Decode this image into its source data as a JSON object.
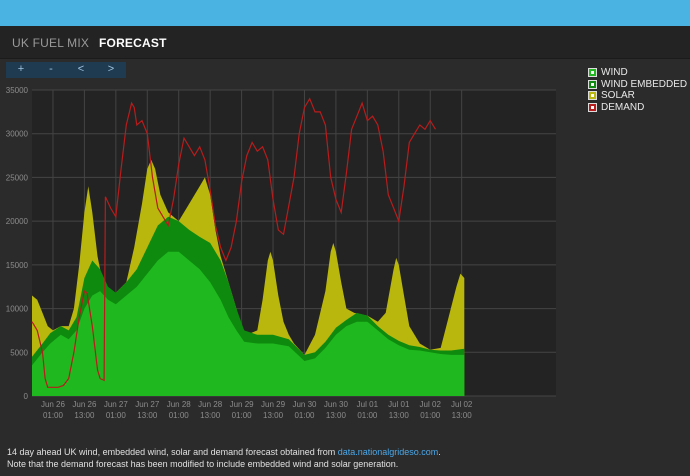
{
  "nav": {
    "tabs": [
      {
        "label": "UK FUEL MIX"
      },
      {
        "label": "FORECAST"
      }
    ]
  },
  "zoom": {
    "buttons": [
      "+",
      "-",
      "<",
      ">"
    ]
  },
  "legend": [
    {
      "label": "WIND",
      "color": "#1fb81f"
    },
    {
      "label": "WIND EMBEDDED",
      "color": "#0e8a0e"
    },
    {
      "label": "SOLAR",
      "color": "#b9b70e"
    },
    {
      "label": "DEMAND",
      "color": "#b81c1c"
    }
  ],
  "footer": {
    "line1_prefix": "14 day ahead UK wind, embedded wind, solar and demand forecast obtained from ",
    "link": "data.nationalgrideso.com",
    "line1_suffix": ".",
    "line2": "Note that the demand forecast has been modified to include embedded wind and solar generation."
  },
  "chart_data": {
    "type": "area",
    "x_unit": "hours since Jun 26 01:00",
    "ylim": [
      0,
      35000
    ],
    "yticks": [
      0,
      5000,
      10000,
      15000,
      20000,
      25000,
      30000,
      35000
    ],
    "xlim": [
      -8,
      192
    ],
    "xticks": [
      {
        "x": 0,
        "line1": "Jun 26",
        "line2": "01:00"
      },
      {
        "x": 12,
        "line1": "Jun 26",
        "line2": "13:00"
      },
      {
        "x": 24,
        "line1": "Jun 27",
        "line2": "01:00"
      },
      {
        "x": 36,
        "line1": "Jun 27",
        "line2": "13:00"
      },
      {
        "x": 48,
        "line1": "Jun 28",
        "line2": "01:00"
      },
      {
        "x": 60,
        "line1": "Jun 28",
        "line2": "13:00"
      },
      {
        "x": 72,
        "line1": "Jun 29",
        "line2": "01:00"
      },
      {
        "x": 84,
        "line1": "Jun 29",
        "line2": "13:00"
      },
      {
        "x": 96,
        "line1": "Jun 30",
        "line2": "01:00"
      },
      {
        "x": 108,
        "line1": "Jun 30",
        "line2": "13:00"
      },
      {
        "x": 120,
        "line1": "Jul 01",
        "line2": "01:00"
      },
      {
        "x": 132,
        "line1": "Jul 01",
        "line2": "13:00"
      },
      {
        "x": 144,
        "line1": "Jul 02",
        "line2": "01:00"
      },
      {
        "x": 156,
        "line1": "Jul 02",
        "line2": "13:00"
      }
    ],
    "grid": true,
    "legend_position": "right",
    "stacked": true,
    "series": [
      {
        "name": "WIND",
        "color": "#1fb81f",
        "points": [
          [
            -8,
            3500
          ],
          [
            -4,
            5000
          ],
          [
            -1,
            6000
          ],
          [
            3,
            7000
          ],
          [
            6,
            6500
          ],
          [
            9,
            7500
          ],
          [
            12,
            10000
          ],
          [
            15,
            11500
          ],
          [
            18,
            12000
          ],
          [
            21,
            11000
          ],
          [
            24,
            10500
          ],
          [
            28,
            11500
          ],
          [
            32,
            12500
          ],
          [
            36,
            14000
          ],
          [
            40,
            15500
          ],
          [
            44,
            16500
          ],
          [
            48,
            16500
          ],
          [
            52,
            15500
          ],
          [
            56,
            14500
          ],
          [
            60,
            13000
          ],
          [
            64,
            11000
          ],
          [
            67,
            9000
          ],
          [
            70,
            7500
          ],
          [
            73,
            6200
          ],
          [
            78,
            6000
          ],
          [
            84,
            6000
          ],
          [
            90,
            5700
          ],
          [
            96,
            4000
          ],
          [
            100,
            4300
          ],
          [
            104,
            5500
          ],
          [
            108,
            7000
          ],
          [
            112,
            8000
          ],
          [
            116,
            8500
          ],
          [
            120,
            8500
          ],
          [
            124,
            7500
          ],
          [
            128,
            6500
          ],
          [
            132,
            5800
          ],
          [
            136,
            5300
          ],
          [
            140,
            5200
          ],
          [
            144,
            5000
          ],
          [
            148,
            4800
          ],
          [
            152,
            4700
          ],
          [
            157,
            4700
          ]
        ]
      },
      {
        "name": "WIND EMBEDDED",
        "color": "#0e8a0e",
        "points": [
          [
            -8,
            4500
          ],
          [
            -4,
            6000
          ],
          [
            -1,
            7200
          ],
          [
            3,
            8000
          ],
          [
            6,
            7500
          ],
          [
            9,
            9000
          ],
          [
            12,
            13500
          ],
          [
            15,
            15500
          ],
          [
            18,
            14500
          ],
          [
            21,
            12500
          ],
          [
            24,
            11800
          ],
          [
            28,
            13000
          ],
          [
            32,
            14500
          ],
          [
            36,
            17000
          ],
          [
            40,
            19500
          ],
          [
            44,
            20500
          ],
          [
            48,
            20000
          ],
          [
            52,
            19000
          ],
          [
            56,
            18200
          ],
          [
            60,
            17500
          ],
          [
            64,
            15500
          ],
          [
            67,
            13000
          ],
          [
            70,
            10000
          ],
          [
            73,
            7500
          ],
          [
            78,
            7000
          ],
          [
            84,
            7000
          ],
          [
            90,
            6500
          ],
          [
            96,
            4700
          ],
          [
            100,
            5000
          ],
          [
            104,
            6200
          ],
          [
            108,
            7800
          ],
          [
            112,
            8700
          ],
          [
            116,
            9500
          ],
          [
            120,
            9200
          ],
          [
            124,
            8000
          ],
          [
            128,
            7000
          ],
          [
            132,
            6300
          ],
          [
            136,
            5800
          ],
          [
            140,
            5600
          ],
          [
            144,
            5300
          ],
          [
            148,
            5200
          ],
          [
            152,
            5200
          ],
          [
            157,
            5400
          ]
        ]
      },
      {
        "name": "SOLAR",
        "color": "#b9b70e",
        "points": [
          [
            -8,
            11500
          ],
          [
            -6,
            11000
          ],
          [
            -4,
            9500
          ],
          [
            -2,
            8000
          ],
          [
            0,
            7500
          ],
          [
            3,
            8000
          ],
          [
            6,
            8000
          ],
          [
            8,
            10000
          ],
          [
            10,
            15000
          ],
          [
            12,
            21000
          ],
          [
            13.5,
            24000
          ],
          [
            15,
            21000
          ],
          [
            17,
            16000
          ],
          [
            19,
            13000
          ],
          [
            21,
            12000
          ],
          [
            24,
            11800
          ],
          [
            28,
            13000
          ],
          [
            31,
            17000
          ],
          [
            34,
            22000
          ],
          [
            36,
            26000
          ],
          [
            37.5,
            27000
          ],
          [
            39,
            26000
          ],
          [
            41,
            23000
          ],
          [
            44,
            21000
          ],
          [
            48,
            20000
          ],
          [
            50,
            21000
          ],
          [
            52,
            22000
          ],
          [
            56,
            24000
          ],
          [
            58,
            25000
          ],
          [
            60,
            23000
          ],
          [
            62,
            19000
          ],
          [
            64,
            16000
          ],
          [
            67,
            13000
          ],
          [
            70,
            10000
          ],
          [
            72,
            8000
          ],
          [
            74,
            7000
          ],
          [
            78,
            7500
          ],
          [
            80,
            11000
          ],
          [
            82,
            15500
          ],
          [
            83,
            16500
          ],
          [
            84,
            15500
          ],
          [
            86,
            11500
          ],
          [
            88,
            8500
          ],
          [
            90,
            7000
          ],
          [
            92,
            6000
          ],
          [
            96,
            4700
          ],
          [
            100,
            7000
          ],
          [
            104,
            12000
          ],
          [
            106,
            16500
          ],
          [
            107,
            17500
          ],
          [
            108,
            16500
          ],
          [
            110,
            13000
          ],
          [
            112,
            10000
          ],
          [
            115,
            9500
          ],
          [
            120,
            9200
          ],
          [
            124,
            8500
          ],
          [
            127,
            9500
          ],
          [
            130,
            14500
          ],
          [
            131,
            15800
          ],
          [
            132,
            15000
          ],
          [
            134,
            11500
          ],
          [
            136,
            8000
          ],
          [
            140,
            6000
          ],
          [
            144,
            5300
          ],
          [
            148,
            5500
          ],
          [
            151,
            9000
          ],
          [
            154,
            12500
          ],
          [
            155.5,
            14000
          ],
          [
            157,
            13500
          ]
        ]
      }
    ],
    "demand": {
      "name": "DEMAND",
      "color": "#b81c1c",
      "points": [
        [
          -8,
          8500
        ],
        [
          -6,
          7500
        ],
        [
          -4,
          5000
        ],
        [
          -3,
          2000
        ],
        [
          -2,
          1000
        ],
        [
          2,
          1000
        ],
        [
          4,
          1200
        ],
        [
          6,
          2000
        ],
        [
          8,
          5000
        ],
        [
          10,
          9000
        ],
        [
          12,
          12000
        ],
        [
          13,
          11800
        ],
        [
          15,
          8000
        ],
        [
          17,
          3000
        ],
        [
          18,
          2000
        ],
        [
          19.5,
          1800
        ],
        [
          20,
          22800
        ],
        [
          22,
          21500
        ],
        [
          24,
          20500
        ],
        [
          26,
          26000
        ],
        [
          28,
          31000
        ],
        [
          30,
          33500
        ],
        [
          31,
          33000
        ],
        [
          32,
          31000
        ],
        [
          34,
          31500
        ],
        [
          36,
          30000
        ],
        [
          38,
          25000
        ],
        [
          40,
          21500
        ],
        [
          44,
          19500
        ],
        [
          46,
          22500
        ],
        [
          48,
          26500
        ],
        [
          50,
          29500
        ],
        [
          52,
          28500
        ],
        [
          54,
          27500
        ],
        [
          56,
          28500
        ],
        [
          58,
          27000
        ],
        [
          60,
          23500
        ],
        [
          62,
          19500
        ],
        [
          64,
          17000
        ],
        [
          66,
          15500
        ],
        [
          68,
          17000
        ],
        [
          70,
          20000
        ],
        [
          72,
          24500
        ],
        [
          74,
          27500
        ],
        [
          76,
          29000
        ],
        [
          78,
          28000
        ],
        [
          80,
          28500
        ],
        [
          82,
          27000
        ],
        [
          84,
          22500
        ],
        [
          86,
          19000
        ],
        [
          88,
          18500
        ],
        [
          92,
          25000
        ],
        [
          94,
          30000
        ],
        [
          96,
          33000
        ],
        [
          98,
          34000
        ],
        [
          100,
          32500
        ],
        [
          102,
          32500
        ],
        [
          104,
          31000
        ],
        [
          106,
          25000
        ],
        [
          108,
          22500
        ],
        [
          110,
          21000
        ],
        [
          112,
          25500
        ],
        [
          114,
          30500
        ],
        [
          116,
          32000
        ],
        [
          118,
          33500
        ],
        [
          120,
          31500
        ],
        [
          122,
          32000
        ],
        [
          124,
          31000
        ],
        [
          126,
          28000
        ],
        [
          128,
          23000
        ],
        [
          130,
          21500
        ],
        [
          132,
          20000
        ],
        [
          134,
          24000
        ],
        [
          136,
          29000
        ],
        [
          138,
          30000
        ],
        [
          140,
          31000
        ],
        [
          142,
          30500
        ],
        [
          144,
          31500
        ],
        [
          146,
          30500
        ]
      ]
    }
  }
}
